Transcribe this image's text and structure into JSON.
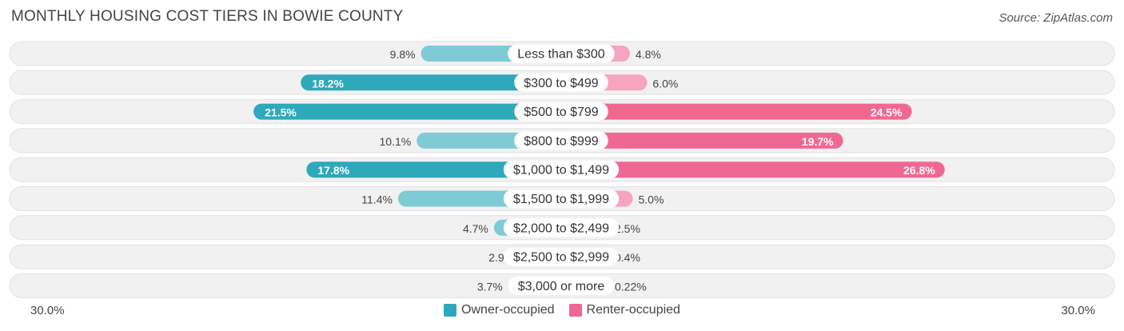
{
  "header": {
    "title": "MONTHLY HOUSING COST TIERS IN BOWIE COUNTY",
    "source": "Source: ZipAtlas.com"
  },
  "axis": {
    "left_label": "30.0%",
    "right_label": "30.0%"
  },
  "legend": {
    "owner_label": "Owner-occupied",
    "renter_label": "Renter-occupied"
  },
  "colors": {
    "owner_dark": "#2ea8bb",
    "owner_light": "#7ecbd6",
    "renter_dark": "#f06892",
    "renter_light": "#f7a4be",
    "row_bg": "#f1f1f1"
  },
  "chart_data": {
    "type": "bar",
    "orientation": "horizontal-diverging",
    "title": "MONTHLY HOUSING COST TIERS IN BOWIE COUNTY",
    "xlim": [
      -30,
      30
    ],
    "categories": [
      "Less than $300",
      "$300 to $499",
      "$500 to $799",
      "$800 to $999",
      "$1,000 to $1,499",
      "$1,500 to $1,999",
      "$2,000 to $2,499",
      "$2,500 to $2,999",
      "$3,000 or more"
    ],
    "series": [
      {
        "name": "Owner-occupied",
        "values": [
          9.8,
          18.2,
          21.5,
          10.1,
          17.8,
          11.4,
          4.7,
          2.9,
          3.7
        ],
        "labels": [
          "9.8%",
          "18.2%",
          "21.5%",
          "10.1%",
          "17.8%",
          "11.4%",
          "4.7%",
          "2.9%",
          "3.7%"
        ]
      },
      {
        "name": "Renter-occupied",
        "values": [
          4.8,
          6.0,
          24.5,
          19.7,
          26.8,
          5.0,
          2.5,
          0.4,
          0.22
        ],
        "labels": [
          "4.8%",
          "6.0%",
          "24.5%",
          "19.7%",
          "26.8%",
          "5.0%",
          "2.5%",
          "0.4%",
          "0.22%"
        ]
      }
    ]
  }
}
